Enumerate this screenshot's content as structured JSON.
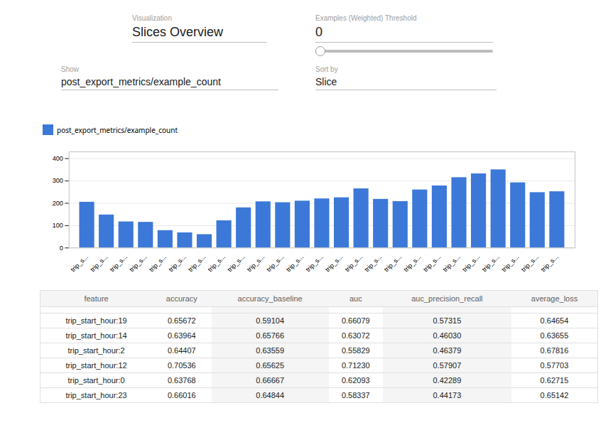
{
  "chart_data": [
    {
      "type": "bar",
      "categories": [
        "trip_s...",
        "trip_s...",
        "trip_s...",
        "trip_s...",
        "trip_s...",
        "trip_s...",
        "trip_s...",
        "trip_s...",
        "trip_s...",
        "trip_s...",
        "trip_s...",
        "trip_s...",
        "trip_s...",
        "trip_s...",
        "trip_s...",
        "trip_s...",
        "trip_s...",
        "trip_s...",
        "trip_s...",
        "trip_s...",
        "trip_s...",
        "trip_s...",
        "trip_s...",
        "trip_s...",
        "trip_s..."
      ],
      "series": [
        {
          "name": "post_export_metrics/example_count",
          "color": "#3c78d8",
          "values": [
            205,
            148,
            117,
            115,
            78,
            68,
            60,
            122,
            180,
            207,
            203,
            210,
            220,
            225,
            265,
            218,
            208,
            260,
            278,
            315,
            332,
            350,
            292,
            248,
            252
          ]
        }
      ],
      "ylim": [
        0,
        430
      ],
      "yticks": [
        0,
        100,
        200,
        300,
        400
      ],
      "grid": true,
      "legend": "top-left",
      "annotations": [
        "Visualization",
        "Slices Overview",
        "Examples (Weighted) Threshold",
        "0",
        "Show",
        "post_export_metrics/example_count",
        "Sort by",
        "Slice"
      ]
    },
    {
      "type": "table",
      "columns": [
        "feature",
        "accuracy",
        "accuracy_baseline",
        "auc",
        "auc_precision_recall",
        "average_loss"
      ],
      "rows": [
        [
          "trip_start_hour:19",
          "0.65672",
          "0.59104",
          "0.66079",
          "0.57315",
          "0.64654"
        ],
        [
          "trip_start_hour:14",
          "0.63964",
          "0.65766",
          "0.63072",
          "0.46030",
          "0.63655"
        ],
        [
          "trip_start_hour:2",
          "0.64407",
          "0.63559",
          "0.55829",
          "0.46379",
          "0.67816"
        ],
        [
          "trip_start_hour:12",
          "0.70536",
          "0.65625",
          "0.71230",
          "0.57907",
          "0.57703"
        ],
        [
          "trip_start_hour:0",
          "0.63768",
          "0.66667",
          "0.62093",
          "0.42289",
          "0.62715"
        ],
        [
          "trip_start_hour:23",
          "0.66016",
          "0.64844",
          "0.58337",
          "0.44173",
          "0.65142"
        ]
      ]
    }
  ]
}
